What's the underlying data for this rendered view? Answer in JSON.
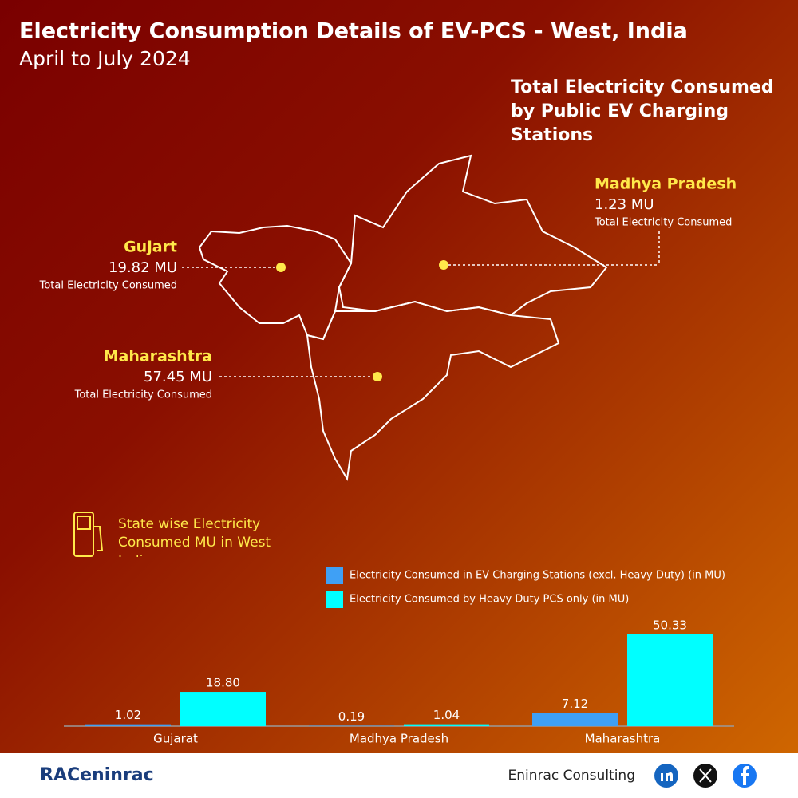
{
  "header": {
    "title": "Electricity Consumption Details of EV-PCS - West, India",
    "subtitle": "April to July 2024",
    "map_title": "Total Electricity Consumed by Public EV Charging Stations"
  },
  "map_labels": [
    {
      "state": "Gujart",
      "value": "19.82 MU",
      "caption": "Total Electricity Consumed"
    },
    {
      "state": "Madhya Pradesh",
      "value": "1.23 MU",
      "caption": "Total Electricity Consumed"
    },
    {
      "state": "Maharashtra",
      "value": "57.45 MU",
      "caption": "Total Electricity Consumed"
    }
  ],
  "chart_data": {
    "type": "bar",
    "title": "State wise Electricity Consumed MU in West India",
    "categories": [
      "Gujarat",
      "Madhya Pradesh",
      "Maharashtra"
    ],
    "series": [
      {
        "name": "Electricity Consumed in EV Charging Stations (excl. Heavy Duty) (in MU)",
        "color": "#3fa0f5",
        "values": [
          1.02,
          0.19,
          7.12
        ],
        "value_labels": [
          "1.02",
          "0.19",
          "7.12"
        ]
      },
      {
        "name": "Electricity Consumed by Heavy Duty PCS only (in MU)",
        "color": "#00ffff",
        "values": [
          18.8,
          1.04,
          50.33
        ],
        "value_labels": [
          "18.80",
          "1.04",
          "50.33"
        ]
      }
    ]
  },
  "footer": {
    "logo": "RACeninrac",
    "company": "Eninrac Consulting"
  }
}
